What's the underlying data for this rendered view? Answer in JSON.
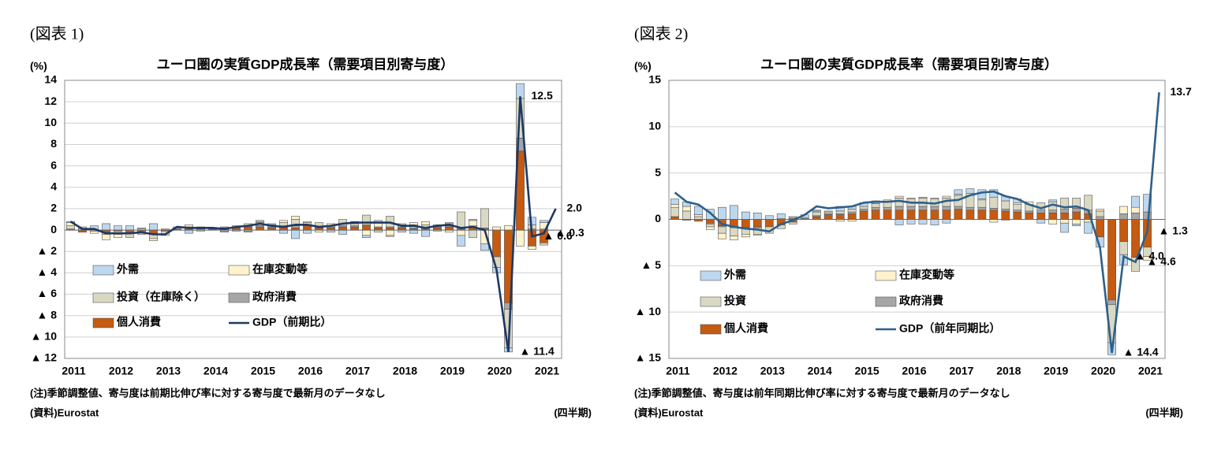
{
  "chart_data": [
    {
      "type": "bar",
      "label": "(図表 1)",
      "title": "ユーロ圏の実質GDP成長率（需要項目別寄与度）",
      "y_label": "(%)",
      "x_label": "(四半期)",
      "notes": [
        "(注)季節調整値、寄与度は前期比伸び率に対する寄与度で最新月のデータなし",
        "(資料)Eurostat"
      ],
      "categories": [
        "2011",
        null,
        null,
        null,
        "2012",
        null,
        null,
        null,
        "2013",
        null,
        null,
        null,
        "2014",
        null,
        null,
        null,
        "2015",
        null,
        null,
        null,
        "2016",
        null,
        null,
        null,
        "2017",
        null,
        null,
        null,
        "2018",
        null,
        null,
        null,
        "2019",
        null,
        null,
        null,
        "2020",
        null,
        null,
        null,
        "2021",
        null
      ],
      "ylim": [
        -12,
        14
      ],
      "yticks": [
        14,
        12,
        10,
        8,
        6,
        4,
        2,
        0,
        {
          "value": -2,
          "label": "▲ 2"
        },
        {
          "value": -4,
          "label": "▲ 4"
        },
        {
          "value": -6,
          "label": "▲ 6"
        },
        {
          "value": -8,
          "label": "▲ 8"
        },
        {
          "value": -10,
          "label": "▲ 10"
        },
        {
          "value": -12,
          "label": "▲ 12"
        }
      ],
      "grid": true,
      "series": [
        {
          "name": "外需",
          "color": "#bdd7ee",
          "values": [
            0.1,
            0.2,
            0.4,
            0.6,
            0.4,
            0.4,
            0.1,
            0.6,
            0.0,
            0.0,
            -0.3,
            0.0,
            0.0,
            -0.1,
            -0.1,
            -0.1,
            0.1,
            0.1,
            -0.3,
            -0.8,
            -0.3,
            0.0,
            -0.2,
            -0.4,
            0.0,
            -0.2,
            0.2,
            -0.1,
            -0.2,
            -0.3,
            -0.6,
            0.0,
            0.1,
            -1.0,
            0.1,
            -0.6,
            -0.5,
            -0.4,
            1.4,
            0.7,
            0.2,
            null
          ]
        },
        {
          "name": "在庫変動等",
          "color": "#fff2cc",
          "values": [
            0.3,
            0.1,
            -0.2,
            -0.5,
            -0.3,
            0.0,
            0.1,
            -0.2,
            0.0,
            0.1,
            0.2,
            -0.1,
            0.1,
            -0.1,
            0.0,
            -0.1,
            0.1,
            0.0,
            0.2,
            0.3,
            0.1,
            -0.2,
            0.2,
            0.0,
            0.2,
            -0.5,
            0.4,
            -0.5,
            0.1,
            0.2,
            0.3,
            -0.1,
            -0.2,
            -0.5,
            0.5,
            -1.3,
            0.3,
            0.4,
            -1.5,
            -0.3,
            0.6,
            null
          ]
        },
        {
          "name": "投資（在庫除く）",
          "color": "#d9d9c3",
          "values": [
            0.3,
            0.0,
            -0.1,
            -0.2,
            -0.3,
            -0.4,
            -0.3,
            -0.4,
            -0.4,
            0.1,
            0.1,
            0.2,
            0.0,
            0.0,
            0.1,
            0.2,
            0.3,
            0.2,
            0.3,
            0.6,
            0.2,
            0.4,
            0.1,
            0.6,
            0.2,
            0.9,
            -0.2,
            1.0,
            0.2,
            0.3,
            0.3,
            0.2,
            0.2,
            1.5,
            -0.7,
            1.8,
            -1.0,
            -3.6,
            3.7,
            0.4,
            -0.2,
            null
          ]
        },
        {
          "name": "政府消費",
          "color": "#a6a6a6",
          "values": [
            0.0,
            0.0,
            0.0,
            0.0,
            0.0,
            0.0,
            0.0,
            -0.1,
            0.1,
            0.0,
            0.0,
            0.1,
            0.0,
            0.1,
            0.1,
            0.1,
            0.1,
            0.1,
            0.1,
            0.2,
            0.1,
            0.1,
            0.1,
            0.1,
            0.1,
            0.1,
            0.1,
            0.1,
            0.1,
            0.1,
            0.1,
            0.1,
            0.1,
            0.1,
            0.1,
            0.1,
            0.0,
            -0.6,
            1.2,
            0.1,
            0.1,
            null
          ]
        },
        {
          "name": "個人消費",
          "color": "#c55a11",
          "values": [
            0.1,
            -0.2,
            0.0,
            -0.2,
            -0.1,
            -0.3,
            -0.1,
            -0.3,
            -0.1,
            0.1,
            0.2,
            0.0,
            0.1,
            0.2,
            0.2,
            0.3,
            0.3,
            0.2,
            0.3,
            0.2,
            0.4,
            0.2,
            0.2,
            0.3,
            0.3,
            0.4,
            0.2,
            0.2,
            0.2,
            0.1,
            0.1,
            0.2,
            0.3,
            0.1,
            0.3,
            0.1,
            -2.5,
            -6.8,
            7.4,
            -1.5,
            -1.2,
            null
          ]
        },
        {
          "name": "GDP（前期比）",
          "color": "#1f3864",
          "line": true,
          "values": [
            0.8,
            0.1,
            0.1,
            -0.3,
            -0.3,
            -0.3,
            -0.2,
            -0.4,
            -0.4,
            0.3,
            0.2,
            0.2,
            0.2,
            0.1,
            0.3,
            0.4,
            0.6,
            0.4,
            0.3,
            0.5,
            0.5,
            0.3,
            0.4,
            0.6,
            0.7,
            0.7,
            0.7,
            0.7,
            0.4,
            0.4,
            0.2,
            0.4,
            0.5,
            0.2,
            0.3,
            0.0,
            -3.7,
            -11.4,
            12.5,
            -0.6,
            -0.3,
            2.0
          ],
          "value_labels": [
            null,
            null,
            null,
            null,
            null,
            null,
            null,
            null,
            null,
            null,
            null,
            null,
            null,
            null,
            null,
            null,
            null,
            null,
            null,
            null,
            null,
            null,
            null,
            null,
            null,
            null,
            null,
            null,
            null,
            null,
            null,
            null,
            null,
            null,
            null,
            null,
            null,
            "▲ 11.4",
            "12.5",
            "▲ 0.6",
            "▲ 0.3",
            "2.0"
          ]
        }
      ]
    },
    {
      "type": "bar",
      "label": "(図表 2)",
      "title": "ユーロ圏の実質GDP成長率（需要項目別寄与度）",
      "y_label": "(%)",
      "x_label": "(四半期)",
      "notes": [
        "(注)季節調整値、寄与度は前年同期比伸び率に対する寄与度で最新月のデータなし",
        "(資料)Eurostat"
      ],
      "categories": [
        "2011",
        null,
        null,
        null,
        "2012",
        null,
        null,
        null,
        "2013",
        null,
        null,
        null,
        "2014",
        null,
        null,
        null,
        "2015",
        null,
        null,
        null,
        "2016",
        null,
        null,
        null,
        "2017",
        null,
        null,
        null,
        "2018",
        null,
        null,
        null,
        "2019",
        null,
        null,
        null,
        "2020",
        null,
        null,
        null,
        "2021",
        null
      ],
      "ylim": [
        -15,
        15
      ],
      "yticks": [
        15,
        10,
        5,
        0,
        {
          "value": -5,
          "label": "▲ 5"
        },
        {
          "value": -10,
          "label": "▲ 10"
        },
        {
          "value": -15,
          "label": "▲ 15"
        }
      ],
      "grid": true,
      "series": [
        {
          "name": "外需",
          "color": "#bdd7ee",
          "values": [
            0.6,
            0.5,
            0.9,
            1.1,
            1.3,
            1.5,
            0.8,
            0.7,
            0.4,
            0.5,
            0.1,
            0.3,
            0.1,
            0.1,
            0.5,
            0.3,
            0.4,
            0.3,
            0.0,
            -0.6,
            -0.5,
            -0.5,
            -0.6,
            -0.4,
            0.5,
            0.5,
            1.0,
            0.8,
            0.5,
            0.4,
            0.0,
            -0.4,
            0.2,
            -1.0,
            -0.2,
            -1.2,
            -1.1,
            -1.3,
            -1.1,
            1.2,
            1.9,
            null
          ]
        },
        {
          "name": "在庫変動等",
          "color": "#fff2cc",
          "values": [
            0.3,
            0.5,
            0.2,
            -0.3,
            -0.6,
            -0.4,
            -0.3,
            -0.1,
            0.0,
            0.1,
            0.1,
            0.0,
            0.1,
            0.0,
            -0.2,
            -0.2,
            0.0,
            0.0,
            0.2,
            0.2,
            0.1,
            0.1,
            0.1,
            0.2,
            0.1,
            0.2,
            0.1,
            -0.3,
            -0.1,
            0.2,
            0.3,
            0.0,
            -0.5,
            -0.4,
            -0.5,
            -0.3,
            0.2,
            0.0,
            0.8,
            0.6,
            -0.4,
            null
          ]
        },
        {
          "name": "投資",
          "color": "#d9d9c3",
          "values": [
            1.0,
            0.9,
            0.3,
            -0.3,
            -0.7,
            -0.9,
            -0.6,
            -0.7,
            -0.7,
            -0.4,
            -0.2,
            0.1,
            0.4,
            0.2,
            0.3,
            0.3,
            0.3,
            0.4,
            0.6,
            0.9,
            0.8,
            0.9,
            0.8,
            0.9,
            1.2,
            1.3,
            0.8,
            1.2,
            0.9,
            0.6,
            0.7,
            0.8,
            0.9,
            1.2,
            1.1,
            1.6,
            0.6,
            -4.1,
            -1.4,
            -1.5,
            -1.0,
            null
          ]
        },
        {
          "name": "政府消費",
          "color": "#a6a6a6",
          "values": [
            0.0,
            -0.1,
            0.0,
            -0.1,
            -0.1,
            -0.1,
            -0.1,
            -0.1,
            0.0,
            0.0,
            0.1,
            0.1,
            0.1,
            0.1,
            0.1,
            0.2,
            0.2,
            0.3,
            0.3,
            0.4,
            0.4,
            0.4,
            0.4,
            0.4,
            0.3,
            0.3,
            0.3,
            0.2,
            0.2,
            0.2,
            0.2,
            0.3,
            0.3,
            0.4,
            0.4,
            0.4,
            0.3,
            -0.5,
            0.6,
            0.7,
            0.8,
            null
          ]
        },
        {
          "name": "個人消費",
          "color": "#c55a11",
          "values": [
            0.3,
            0.0,
            -0.2,
            -0.4,
            -0.7,
            -0.8,
            -0.9,
            -0.8,
            -0.8,
            -0.6,
            -0.3,
            0.0,
            0.3,
            0.5,
            0.5,
            0.6,
            0.9,
            1.0,
            1.0,
            1.0,
            1.0,
            1.0,
            1.0,
            1.0,
            1.1,
            1.0,
            1.0,
            1.0,
            0.9,
            0.8,
            0.7,
            0.7,
            0.7,
            0.7,
            0.8,
            0.6,
            -1.9,
            -8.7,
            -2.4,
            -4.1,
            -3.0,
            null
          ]
        },
        {
          "name": "GDP（前年同期比）",
          "color": "#2e5f8a",
          "line": true,
          "values": [
            2.9,
            1.9,
            1.6,
            0.7,
            -0.5,
            -0.8,
            -1.0,
            -1.1,
            -1.3,
            -0.5,
            -0.1,
            0.5,
            1.4,
            1.2,
            1.3,
            1.4,
            1.8,
            1.9,
            1.9,
            2.0,
            1.8,
            1.8,
            1.7,
            2.0,
            2.1,
            2.6,
            2.9,
            3.0,
            2.5,
            2.2,
            1.6,
            1.2,
            1.6,
            1.3,
            1.4,
            1.0,
            -3.1,
            -14.4,
            -4.0,
            -4.6,
            -1.3,
            13.7
          ],
          "value_labels": [
            null,
            null,
            null,
            null,
            null,
            null,
            null,
            null,
            null,
            null,
            null,
            null,
            null,
            null,
            null,
            null,
            null,
            null,
            null,
            null,
            null,
            null,
            null,
            null,
            null,
            null,
            null,
            null,
            null,
            null,
            null,
            null,
            null,
            null,
            null,
            null,
            null,
            "▲ 14.4",
            "▲ 4.0",
            "▲ 4.6",
            "▲ 1.3",
            "13.7"
          ]
        }
      ]
    }
  ]
}
